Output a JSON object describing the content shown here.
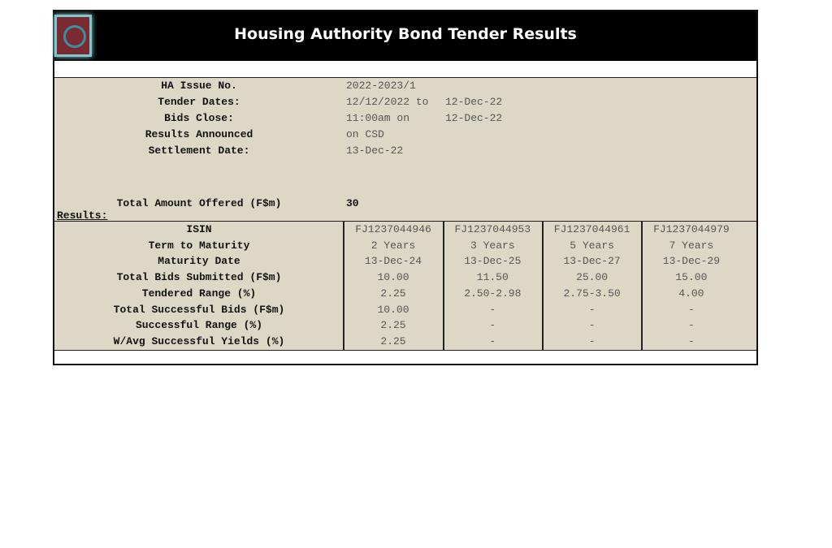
{
  "title": "Housing Authority Bond Tender Results",
  "info": [
    {
      "label": "HA Issue No.",
      "value": "2022-2023/1",
      "value2": ""
    },
    {
      "label": "Tender Dates:",
      "value": "12/12/2022 to",
      "value2": "12-Dec-22"
    },
    {
      "label": "Bids Close:",
      "value": "11:00am on",
      "value2": "12-Dec-22"
    },
    {
      "label": "Results Announced",
      "value": "on CSD",
      "value2": ""
    },
    {
      "label": "Settlement Date:",
      "value": "13-Dec-22",
      "value2": ""
    }
  ],
  "total_offered": {
    "label": "Total Amount Offered (F$m)",
    "value": "30"
  },
  "results_label": "Results:",
  "table": {
    "row_labels": [
      "ISIN",
      "Term to Maturity",
      "Maturity Date",
      "Total Bids Submitted (F$m)",
      "Tendered Range (%)",
      "Total Successful Bids (F$m)",
      "Successful Range (%)",
      "W/Avg Successful Yields (%)"
    ],
    "columns": [
      [
        "FJ1237044946",
        "2 Years",
        "13-Dec-24",
        "10.00",
        "2.25",
        "10.00",
        "2.25",
        "2.25"
      ],
      [
        "FJ1237044953",
        "3 Years",
        "13-Dec-25",
        "11.50",
        "2.50-2.98",
        "-",
        "-",
        "-"
      ],
      [
        "FJ1237044961",
        "5 Years",
        "13-Dec-27",
        "25.00",
        "2.75-3.50",
        "-",
        "-",
        "-"
      ],
      [
        "FJ1237044979",
        "7 Years",
        "13-Dec-29",
        "15.00",
        "4.00",
        "-",
        "-",
        "-"
      ]
    ]
  }
}
